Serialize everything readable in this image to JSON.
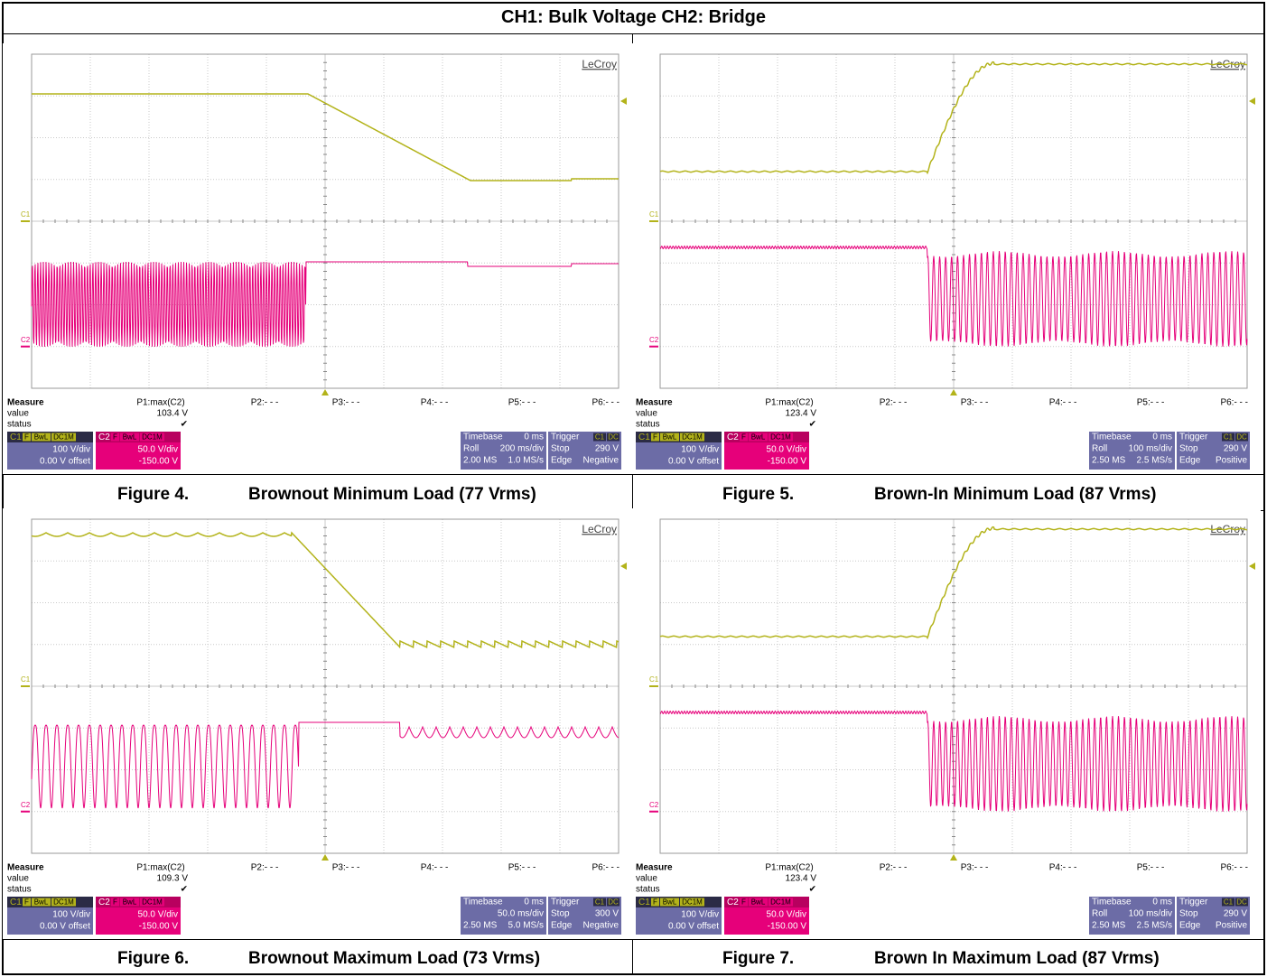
{
  "header": {
    "title": "CH1: Bulk Voltage CH2: Bridge"
  },
  "figures": [
    {
      "number": "Figure 4.",
      "caption": "Brownout Minimum Load (77 Vrms)",
      "scope": {
        "brand": "LeCroy",
        "c1_marker": "C1",
        "c2_marker": "C2",
        "measure": {
          "label": "Measure",
          "value_label": "value",
          "status_label": "status",
          "params": [
            "P1:max(C2)",
            "P2:- - -",
            "P3:- - -",
            "P4:- - -",
            "P5:- - -",
            "P6:- - -"
          ],
          "value": "103.4 V",
          "status": "✔"
        },
        "ch1": {
          "name": "C1",
          "flags": [
            "F",
            "BwL",
            "DC1M"
          ],
          "scale": "100 V/div",
          "offset": "0.00 V offset"
        },
        "ch2": {
          "name": "C2",
          "flags": [
            "F",
            "BwL",
            "DC1M"
          ],
          "scale": "50.0 V/div",
          "offset": "-150.00 V"
        },
        "timebase": {
          "label": "Timebase",
          "delay": "0 ms",
          "mode": "Roll",
          "scale": "200 ms/div",
          "samples": "2.00 MS",
          "rate": "1.0 MS/s"
        },
        "trigger": {
          "label": "Trigger",
          "source": [
            "C1",
            "DC"
          ],
          "mode": "Stop",
          "level": "290 V",
          "type": "Edge",
          "slope": "Negative"
        }
      }
    },
    {
      "number": "Figure 5.",
      "caption": "Brown-In Minimum Load (87 Vrms)",
      "scope": {
        "brand": "LeCroy",
        "c1_marker": "C1",
        "c2_marker": "C2",
        "measure": {
          "label": "Measure",
          "value_label": "value",
          "status_label": "status",
          "params": [
            "P1:max(C2)",
            "P2:- - -",
            "P3:- - -",
            "P4:- - -",
            "P5:- - -",
            "P6:- - -"
          ],
          "value": "123.4 V",
          "status": "✔"
        },
        "ch1": {
          "name": "C1",
          "flags": [
            "F",
            "BwL",
            "DC1M"
          ],
          "scale": "100 V/div",
          "offset": "0.00 V offset"
        },
        "ch2": {
          "name": "C2",
          "flags": [
            "F",
            "BwL",
            "DC1M"
          ],
          "scale": "50.0 V/div",
          "offset": "-150.00 V"
        },
        "timebase": {
          "label": "Timebase",
          "delay": "0 ms",
          "mode": "Roll",
          "scale": "100 ms/div",
          "samples": "2.50 MS",
          "rate": "2.5 MS/s"
        },
        "trigger": {
          "label": "Trigger",
          "source": [
            "C1",
            "DC"
          ],
          "mode": "Stop",
          "level": "290 V",
          "type": "Edge",
          "slope": "Positive"
        }
      }
    },
    {
      "number": "Figure 6.",
      "caption": "Brownout Maximum Load (73 Vrms)",
      "scope": {
        "brand": "LeCroy",
        "c1_marker": "C1",
        "c2_marker": "C2",
        "measure": {
          "label": "Measure",
          "value_label": "value",
          "status_label": "status",
          "params": [
            "P1:max(C2)",
            "P2:- - -",
            "P3:- - -",
            "P4:- - -",
            "P5:- - -",
            "P6:- - -"
          ],
          "value": "109.3 V",
          "status": "✔"
        },
        "ch1": {
          "name": "C1",
          "flags": [
            "F",
            "BwL",
            "DC1M"
          ],
          "scale": "100 V/div",
          "offset": "0.00 V offset"
        },
        "ch2": {
          "name": "C2",
          "flags": [
            "F",
            "BwL",
            "DC1M"
          ],
          "scale": "50.0 V/div",
          "offset": "-150.00 V"
        },
        "timebase": {
          "label": "Timebase",
          "delay": "0 ms",
          "scale": "50.0 ms/div",
          "samples": "2.50 MS",
          "rate": "5.0 MS/s"
        },
        "trigger": {
          "label": "Trigger",
          "source": [
            "C1",
            "DC"
          ],
          "mode": "Stop",
          "level": "300 V",
          "type": "Edge",
          "slope": "Negative"
        }
      }
    },
    {
      "number": "Figure 7.",
      "caption": "Brown In Maximum Load (87 Vrms)",
      "scope": {
        "brand": "LeCroy",
        "c1_marker": "C1",
        "c2_marker": "C2",
        "measure": {
          "label": "Measure",
          "value_label": "value",
          "status_label": "status",
          "params": [
            "P1:max(C2)",
            "P2:- - -",
            "P3:- - -",
            "P4:- - -",
            "P5:- - -",
            "P6:- - -"
          ],
          "value": "123.4 V",
          "status": "✔"
        },
        "ch1": {
          "name": "C1",
          "flags": [
            "F",
            "BwL",
            "DC1M"
          ],
          "scale": "100 V/div",
          "offset": "0.00 V offset"
        },
        "ch2": {
          "name": "C2",
          "flags": [
            "F",
            "BwL",
            "DC1M"
          ],
          "scale": "50.0 V/div",
          "offset": "-150.00 V"
        },
        "timebase": {
          "label": "Timebase",
          "delay": "0 ms",
          "mode": "Roll",
          "scale": "100 ms/div",
          "samples": "2.50 MS",
          "rate": "2.5 MS/s"
        },
        "trigger": {
          "label": "Trigger",
          "source": [
            "C1",
            "DC"
          ],
          "mode": "Stop",
          "level": "290 V",
          "type": "Edge",
          "slope": "Positive"
        }
      }
    }
  ]
}
